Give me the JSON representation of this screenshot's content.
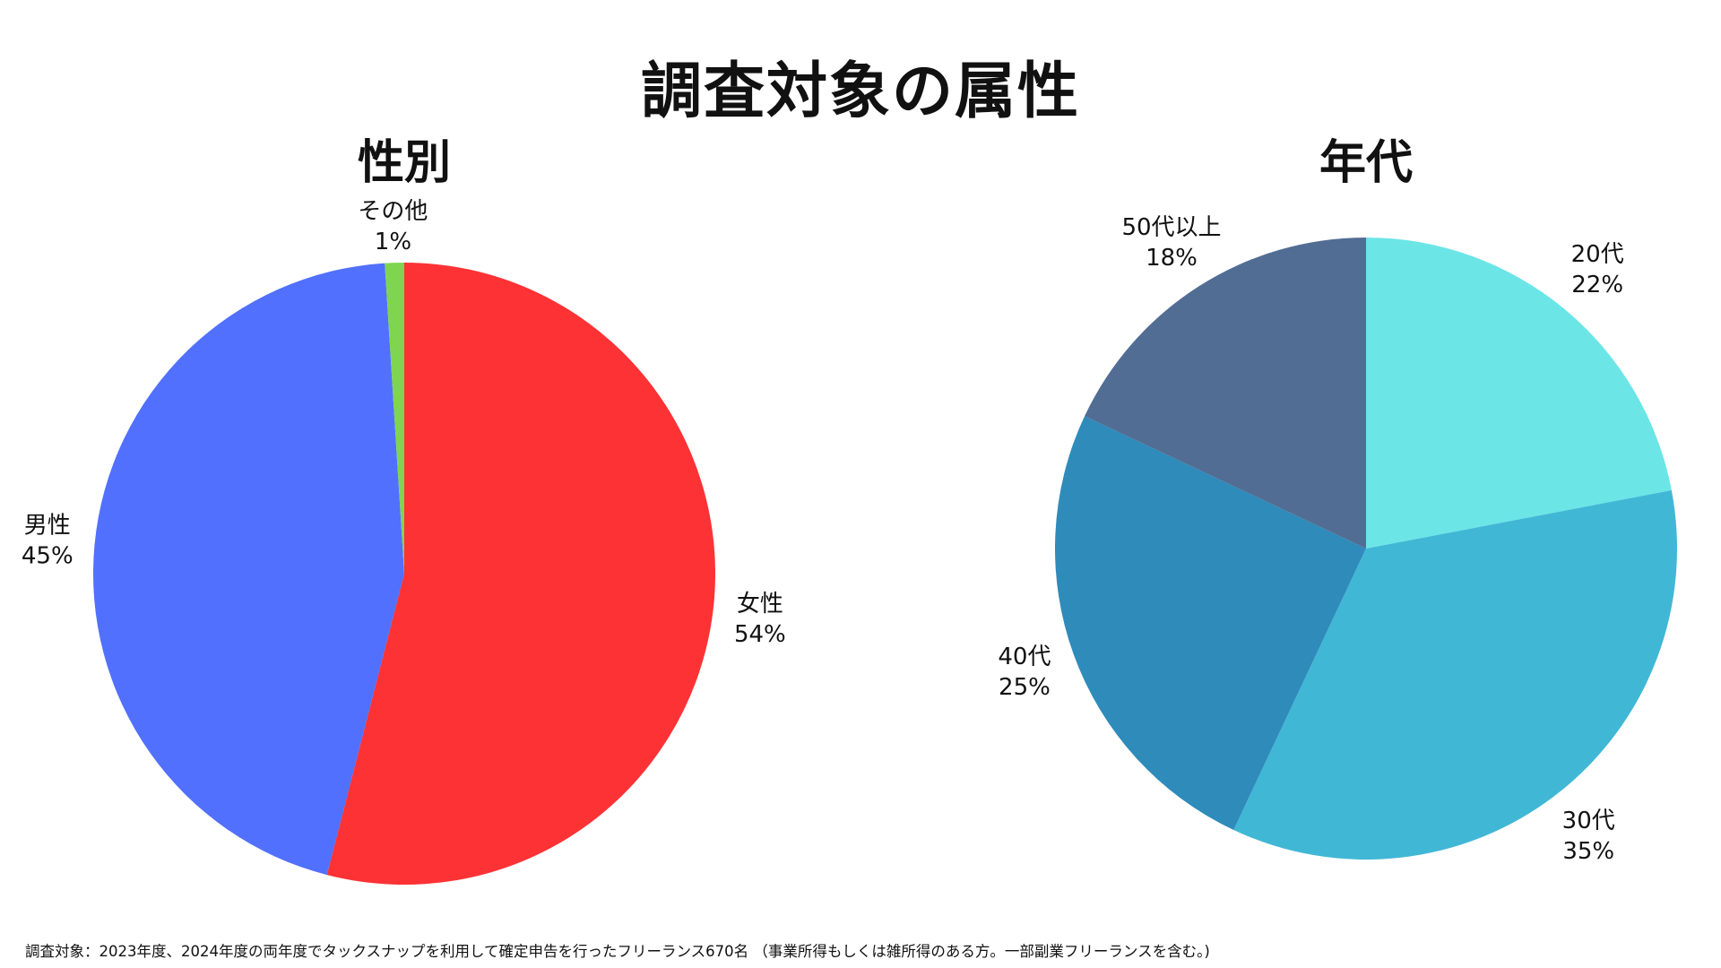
{
  "title": "調査対象の属性",
  "footnote": "調査対象：2023年度、2024年度の両年度でタックスナップを利用して確定申告を行ったフリーランス670名 （事業所得もしくは雑所得のある方。一部副業フリーランスを含む。)",
  "chart_data": [
    {
      "type": "pie",
      "title": "性別",
      "categories": [
        "女性",
        "男性",
        "その他"
      ],
      "values": [
        54,
        45,
        1
      ],
      "labels": [
        "54%",
        "45%",
        "1%"
      ],
      "colors": [
        "#fd3235",
        "#5170fd",
        "#7fd54f"
      ],
      "start": "12 o'clock",
      "direction": "clockwise",
      "label_position": "outside"
    },
    {
      "type": "pie",
      "title": "年代",
      "categories": [
        "20代",
        "30代",
        "40代",
        "50代以上"
      ],
      "values": [
        22,
        35,
        25,
        18
      ],
      "labels": [
        "22%",
        "35%",
        "25%",
        "18%"
      ],
      "colors": [
        "#6ce5e7",
        "#41b7d6",
        "#2e8bba",
        "#526d94"
      ],
      "start": "12 o'clock",
      "direction": "clockwise",
      "label_position": "outside"
    }
  ]
}
